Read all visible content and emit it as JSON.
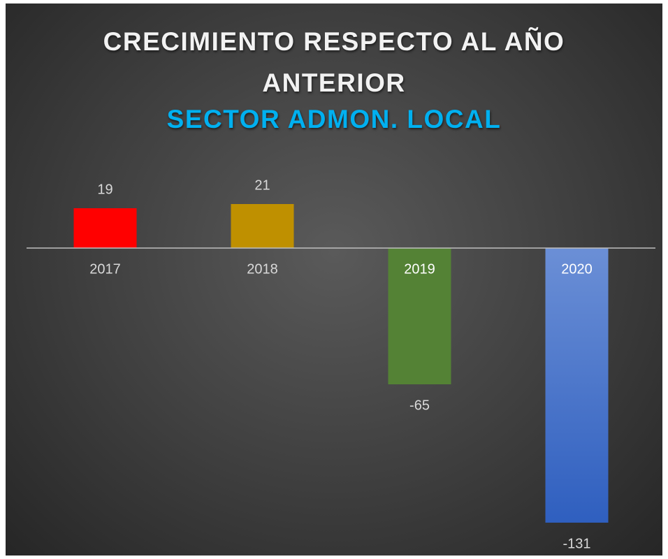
{
  "chart_data": {
    "type": "bar",
    "title": "CRECIMIENTO RESPECTO AL AÑO ANTERIOR",
    "subtitle": "SECTOR ADMON. LOCAL",
    "categories": [
      "2017",
      "2018",
      "2019",
      "2020"
    ],
    "values": [
      19,
      21,
      -65,
      -131
    ],
    "colors": [
      "#ff0000",
      "#bf9000",
      "#548235",
      "#4472c4"
    ]
  }
}
